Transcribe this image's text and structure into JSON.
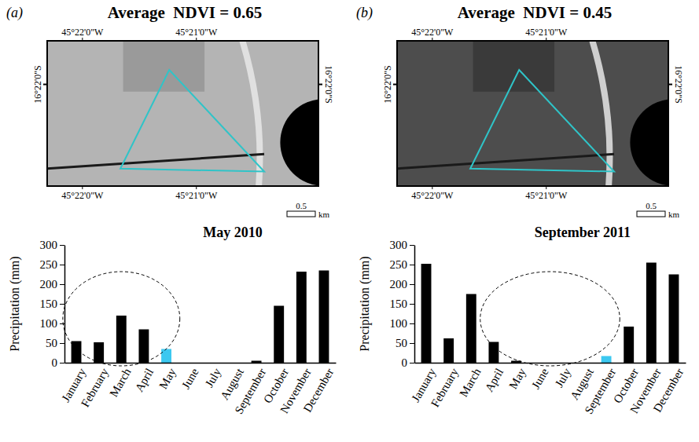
{
  "panels": [
    {
      "letter": "(a)",
      "title": "Average  NDVI = 0.65",
      "lon_labels": [
        "45°22'0\"W",
        "45°21'0\"W"
      ],
      "lat_label": "16°22'0\"S",
      "scale_label": "0.5",
      "scale_unit": "km",
      "circled": [
        0,
        4
      ]
    },
    {
      "letter": "(b)",
      "title": "Average  NDVI = 0.45",
      "lon_labels": [
        "45°22'0\"W",
        "45°21'0\"W"
      ],
      "lat_label": "16°22'0\"S",
      "scale_label": "0.5",
      "scale_unit": "km",
      "circled": [
        3,
        8
      ]
    }
  ],
  "chart_data": [
    {
      "type": "bar",
      "title": "May 2010",
      "y_label": "Precipitation (mm)",
      "categories": [
        "January",
        "February",
        "March",
        "April",
        "May",
        "June",
        "July",
        "August",
        "September",
        "October",
        "November",
        "December"
      ],
      "values": [
        55,
        52,
        120,
        85,
        35,
        0,
        0,
        0,
        5,
        145,
        232,
        235
      ],
      "colors": [
        "#000000",
        "#000000",
        "#000000",
        "#000000",
        "#3cc8f0",
        "#000000",
        "#000000",
        "#000000",
        "#000000",
        "#000000",
        "#000000",
        "#000000"
      ],
      "ylim": [
        0,
        300
      ],
      "yticks": [
        0,
        50,
        100,
        150,
        200,
        250,
        300
      ],
      "grid": false
    },
    {
      "type": "bar",
      "title": "September 2011",
      "y_label": "Precipitation (mm)",
      "categories": [
        "January",
        "February",
        "March",
        "April",
        "May",
        "June",
        "July",
        "August",
        "September",
        "October",
        "November",
        "December"
      ],
      "values": [
        252,
        62,
        175,
        53,
        5,
        0,
        0,
        0,
        17,
        92,
        255,
        225
      ],
      "colors": [
        "#000000",
        "#000000",
        "#000000",
        "#000000",
        "#000000",
        "#000000",
        "#000000",
        "#000000",
        "#3cc8f0",
        "#000000",
        "#000000",
        "#000000"
      ],
      "ylim": [
        0,
        300
      ],
      "yticks": [
        0,
        50,
        100,
        150,
        200,
        250,
        300
      ],
      "grid": false
    }
  ]
}
